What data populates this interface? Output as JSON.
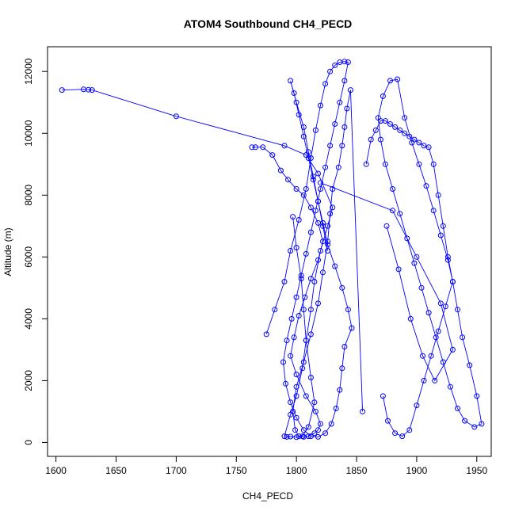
{
  "chart_data": {
    "type": "line",
    "title": "ATOM4 Southbound CH4_PECD",
    "xlabel": "CH4_PECD",
    "ylabel": "Altitude (m)",
    "xlim": [
      1593,
      1962
    ],
    "ylim": [
      -450,
      12800
    ],
    "xticks": [
      1600,
      1650,
      1700,
      1750,
      1800,
      1850,
      1900,
      1950
    ],
    "yticks": [
      0,
      2000,
      4000,
      6000,
      8000,
      10000,
      12000
    ],
    "series_color": "#0000ff",
    "markers": "open-circle",
    "grid": false,
    "legend": "none",
    "series": [
      {
        "x": [
          1605,
          1623,
          1627,
          1630,
          1700,
          1790,
          1808,
          1818,
          1830,
          1826,
          1820,
          1815,
          1812,
          1808,
          1805,
          1800,
          1795,
          1790,
          1792,
          1795,
          1800,
          1805,
          1810,
          1815,
          1812,
          1808,
          1806,
          1804,
          1800,
          1797
        ],
        "y": [
          11400,
          11420,
          11410,
          11400,
          10550,
          9600,
          9300,
          8700,
          7600,
          7000,
          6200,
          5200,
          4300,
          3300,
          2400,
          1500,
          900,
          200,
          180,
          190,
          170,
          200,
          500,
          1300,
          2100,
          3300,
          4300,
          5300,
          6300,
          7300
        ]
      },
      {
        "x": [
          1763,
          1766,
          1772,
          1780,
          1787,
          1793,
          1800,
          1806,
          1812,
          1818,
          1822,
          1818,
          1812,
          1807,
          1802,
          1798,
          1795,
          1800,
          1808,
          1816,
          1820,
          1818,
          1815,
          1810,
          1806,
          1802,
          1799,
          1797,
          1800,
          1806,
          1812,
          1818,
          1822,
          1826,
          1828,
          1830,
          1835,
          1838,
          1840,
          1842,
          1845,
          1855
        ],
        "y": [
          9550,
          9550,
          9550,
          9300,
          8800,
          8500,
          8200,
          8000,
          7600,
          7100,
          6500,
          5900,
          5300,
          4700,
          4100,
          3400,
          2800,
          2200,
          1500,
          1000,
          600,
          400,
          300,
          200,
          180,
          200,
          400,
          1000,
          1800,
          2600,
          3500,
          4500,
          5500,
          6500,
          7400,
          8200,
          8900,
          9600,
          10200,
          10800,
          11400,
          1000
        ]
      },
      {
        "x": [
          1775,
          1782,
          1790,
          1795,
          1802,
          1808,
          1812,
          1816,
          1820,
          1824,
          1828,
          1832,
          1836,
          1840,
          1843,
          1840,
          1836,
          1832,
          1828,
          1824,
          1820,
          1816,
          1812,
          1808,
          1804,
          1800,
          1796,
          1792,
          1789,
          1791,
          1795,
          1800,
          1806,
          1812,
          1818,
          1824,
          1829,
          1833,
          1836,
          1838,
          1840,
          1846,
          1843,
          1838,
          1832,
          1826,
          1822,
          1818,
          1814,
          1810,
          1806,
          1802,
          1798,
          1795,
          1800,
          1806,
          1810,
          1814,
          1818,
          1822,
          1826
        ],
        "y": [
          3500,
          4300,
          5200,
          6200,
          7200,
          8200,
          9200,
          10100,
          10900,
          11600,
          12000,
          12200,
          12300,
          12320,
          12300,
          11700,
          11000,
          10300,
          9600,
          8900,
          8200,
          7500,
          6800,
          6100,
          5400,
          4700,
          4000,
          3300,
          2600,
          1900,
          1300,
          800,
          400,
          200,
          180,
          300,
          600,
          1100,
          1700,
          2400,
          3100,
          3700,
          4300,
          5000,
          5700,
          6400,
          7100,
          7800,
          8500,
          9200,
          9900,
          10600,
          11300,
          11700,
          11000,
          10200,
          9400,
          8600,
          7800,
          7000,
          6200
        ]
      },
      {
        "x": [
          1858,
          1862,
          1866,
          1870,
          1874,
          1878,
          1882,
          1886,
          1890,
          1894,
          1898,
          1902,
          1906,
          1910,
          1914,
          1918,
          1922,
          1926,
          1930,
          1934,
          1938,
          1944,
          1950,
          1954,
          1948,
          1940,
          1934,
          1928,
          1922,
          1916,
          1910,
          1904,
          1898,
          1892,
          1886,
          1880,
          1874,
          1870,
          1868,
          1872,
          1878,
          1884,
          1890,
          1896,
          1902,
          1908,
          1914,
          1920,
          1926,
          1930,
          1924,
          1918,
          1912,
          1906,
          1900,
          1894,
          1888,
          1882,
          1876,
          1872
        ],
        "y": [
          9000,
          9800,
          10100,
          10400,
          10400,
          10300,
          10200,
          10100,
          10000,
          9900,
          9800,
          9700,
          9600,
          9550,
          9000,
          8000,
          7000,
          6000,
          5200,
          4300,
          3400,
          2500,
          1500,
          600,
          500,
          700,
          1100,
          1800,
          2600,
          3400,
          4200,
          5000,
          5800,
          6600,
          7400,
          8200,
          9000,
          9800,
          10500,
          11200,
          11700,
          11750,
          10500,
          9700,
          9000,
          8300,
          7500,
          6700,
          5900,
          5200,
          4400,
          3600,
          2800,
          2000,
          1200,
          400,
          200,
          300,
          700,
          1500
        ]
      },
      {
        "x": [
          1820,
          1880,
          1900,
          1920,
          1930,
          1915,
          1905,
          1895,
          1885,
          1875
        ],
        "y": [
          8400,
          7500,
          6000,
          4500,
          3000,
          2000,
          2800,
          4000,
          5600,
          7000
        ]
      }
    ]
  }
}
